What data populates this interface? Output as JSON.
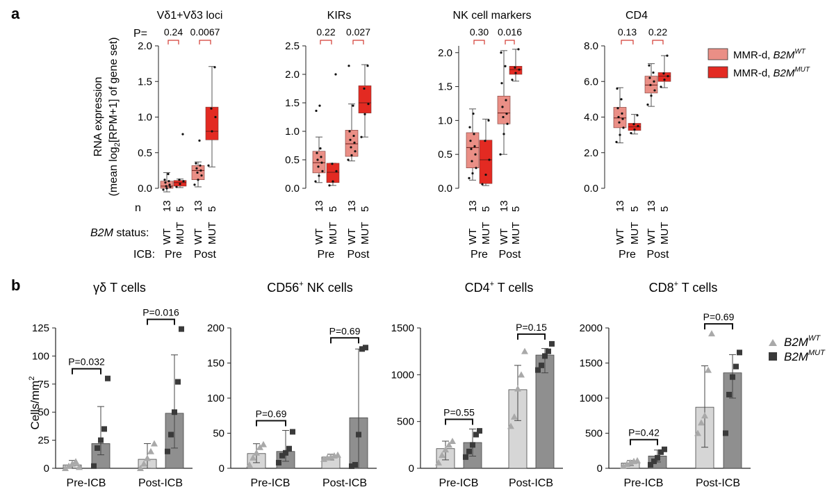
{
  "panel_a": {
    "label": "a",
    "ylabel_line1": "RNA expression",
    "ylabel_line2_prefix": "(mean log",
    "ylabel_line2_sub": "2",
    "ylabel_line2_suffix": "[RPM+1] of gene set)",
    "row_p": "P=",
    "row_n": "n",
    "row_status_italic": "B2M",
    "row_status_rest": " status:",
    "row_icb": "ICB:",
    "groups": [
      "Pre",
      "Post"
    ],
    "status_labels": [
      "WT",
      "MUT",
      "WT",
      "MUT"
    ],
    "n_values": [
      "13",
      "5",
      "13",
      "5"
    ],
    "legend": [
      {
        "main": "MMR-d, ",
        "gene": "B2M",
        "sup": "WT",
        "color": "#ea8f86"
      },
      {
        "main": "MMR-d, ",
        "gene": "B2M",
        "sup": "MUT",
        "color": "#e32a22"
      }
    ]
  },
  "panel_b": {
    "label": "b",
    "ylabel": "Cells/mm",
    "ylabel_sup": "2",
    "categories": [
      "Pre-ICB",
      "Post-ICB"
    ],
    "legend": [
      {
        "gene": "B2M",
        "sup": "WT",
        "color": "#a9a9a9",
        "marker": "triangle"
      },
      {
        "gene": "B2M",
        "sup": "MUT",
        "color": "#3a3a3a",
        "marker": "square"
      }
    ]
  },
  "colors": {
    "wt_box": "#ea8f86",
    "mut_box": "#e32a22",
    "bracket_a": "#d33b33",
    "wt_bar": "#d6d6d6",
    "mut_bar": "#8f8f8f",
    "wt_marker": "#a9a9a9",
    "mut_marker": "#3a3a3a"
  },
  "chart_data": [
    {
      "type": "box",
      "title": "Vδ1+Vδ3 loci",
      "ylim": [
        0,
        2.0
      ],
      "yticks": [
        0,
        0.5,
        1.0,
        1.5,
        2.0
      ],
      "tick_decimals": 1,
      "pvalues": [
        "0.24",
        "0.0067"
      ],
      "boxes": [
        {
          "group": "Pre",
          "status": "WT",
          "q1": 0.0,
          "median": 0.03,
          "q3": 0.1,
          "whisker_low": -0.05,
          "whisker_high": 0.22,
          "points": [
            -0.02,
            0.0,
            0.02,
            0.03,
            0.05,
            0.08,
            0.1,
            0.12,
            0.2
          ]
        },
        {
          "group": "Pre",
          "status": "MUT",
          "q1": 0.03,
          "median": 0.08,
          "q3": 0.11,
          "whisker_low": 0.01,
          "whisker_high": 0.13,
          "points": [
            0.02,
            0.06,
            0.1,
            0.12,
            0.76
          ]
        },
        {
          "group": "Post",
          "status": "WT",
          "q1": 0.12,
          "median": 0.25,
          "q3": 0.32,
          "whisker_low": 0.02,
          "whisker_high": 0.37,
          "points": [
            0.05,
            0.12,
            0.18,
            0.22,
            0.25,
            0.28,
            0.32,
            0.35,
            0.67
          ]
        },
        {
          "group": "Post",
          "status": "MUT",
          "q1": 0.68,
          "median": 0.8,
          "q3": 1.14,
          "whisker_low": 0.3,
          "whisker_high": 1.71,
          "points": [
            0.32,
            0.8,
            1.0,
            1.12,
            1.7
          ]
        }
      ]
    },
    {
      "type": "box",
      "title": "KIRs",
      "ylim": [
        0,
        2.5
      ],
      "yticks": [
        0,
        0.5,
        1.0,
        1.5,
        2.0,
        2.5
      ],
      "tick_decimals": 1,
      "pvalues": [
        "0.22",
        "0.027"
      ],
      "boxes": [
        {
          "group": "Pre",
          "status": "WT",
          "q1": 0.27,
          "median": 0.45,
          "q3": 0.65,
          "whisker_low": 0.1,
          "whisker_high": 0.9,
          "points": [
            0.12,
            0.22,
            0.3,
            0.38,
            0.45,
            0.5,
            0.55,
            0.62,
            0.7,
            1.36,
            1.45
          ]
        },
        {
          "group": "Pre",
          "status": "MUT",
          "q1": 0.1,
          "median": 0.28,
          "q3": 0.44,
          "whisker_low": 0.05,
          "whisker_high": 0.44,
          "points": [
            0.05,
            0.12,
            0.3,
            0.43,
            2.0
          ]
        },
        {
          "group": "Post",
          "status": "WT",
          "q1": 0.56,
          "median": 0.78,
          "q3": 1.02,
          "whisker_low": 0.48,
          "whisker_high": 1.48,
          "points": [
            0.5,
            0.58,
            0.65,
            0.72,
            0.8,
            0.85,
            0.92,
            1.0,
            1.45,
            2.15
          ]
        },
        {
          "group": "Post",
          "status": "MUT",
          "q1": 1.32,
          "median": 1.5,
          "q3": 1.8,
          "whisker_low": 0.9,
          "whisker_high": 2.17,
          "points": [
            0.9,
            1.3,
            1.48,
            1.75,
            2.15
          ]
        }
      ]
    },
    {
      "type": "box",
      "title": "NK cell markers",
      "ylim": [
        0,
        2.1
      ],
      "yticks": [
        0,
        0.5,
        1.0,
        1.5,
        2.0
      ],
      "tick_decimals": 1,
      "pvalues": [
        "0.30",
        "0.016"
      ],
      "boxes": [
        {
          "group": "Pre",
          "status": "WT",
          "q1": 0.3,
          "median": 0.6,
          "q3": 0.82,
          "whisker_low": 0.12,
          "whisker_high": 1.17,
          "points": [
            0.15,
            0.22,
            0.3,
            0.4,
            0.5,
            0.58,
            0.62,
            0.7,
            0.8,
            0.9,
            1.1
          ]
        },
        {
          "group": "Pre",
          "status": "MUT",
          "q1": 0.07,
          "median": 0.42,
          "q3": 0.71,
          "whisker_low": 0.04,
          "whisker_high": 1.02,
          "points": [
            0.06,
            0.2,
            0.42,
            0.7,
            1.0
          ]
        },
        {
          "group": "Post",
          "status": "WT",
          "q1": 0.95,
          "median": 1.11,
          "q3": 1.36,
          "whisker_low": 0.5,
          "whisker_high": 2.03,
          "points": [
            0.5,
            0.8,
            0.95,
            1.05,
            1.1,
            1.2,
            1.3,
            1.55,
            1.8,
            2.0
          ]
        },
        {
          "group": "Post",
          "status": "MUT",
          "q1": 1.68,
          "median": 1.75,
          "q3": 1.8,
          "whisker_low": 1.58,
          "whisker_high": 2.05,
          "points": [
            1.6,
            1.7,
            1.75,
            1.78,
            2.05
          ]
        }
      ]
    },
    {
      "type": "box",
      "title": "CD4",
      "ylim": [
        0,
        8.0
      ],
      "yticks": [
        0,
        2.0,
        4.0,
        6.0,
        8.0
      ],
      "tick_decimals": 1,
      "pvalues": [
        "0.13",
        "0.22"
      ],
      "boxes": [
        {
          "group": "Pre",
          "status": "WT",
          "q1": 3.4,
          "median": 3.95,
          "q3": 4.55,
          "whisker_low": 2.55,
          "whisker_high": 5.65,
          "points": [
            2.6,
            3.0,
            3.4,
            3.7,
            3.9,
            4.0,
            4.2,
            4.5,
            5.0,
            5.6
          ]
        },
        {
          "group": "Pre",
          "status": "MUT",
          "q1": 3.25,
          "median": 3.45,
          "q3": 3.65,
          "whisker_low": 3.05,
          "whisker_high": 4.15,
          "points": [
            3.1,
            3.3,
            3.5,
            3.6,
            4.1
          ]
        },
        {
          "group": "Post",
          "status": "WT",
          "q1": 5.35,
          "median": 5.8,
          "q3": 6.3,
          "whisker_low": 4.6,
          "whisker_high": 7.0,
          "points": [
            4.7,
            5.2,
            5.5,
            5.8,
            6.0,
            6.2,
            6.5,
            6.9
          ]
        },
        {
          "group": "Post",
          "status": "MUT",
          "q1": 6.0,
          "median": 6.3,
          "q3": 6.5,
          "whisker_low": 5.65,
          "whisker_high": 7.45,
          "points": [
            5.7,
            6.1,
            6.3,
            6.45,
            7.45
          ]
        }
      ]
    },
    {
      "type": "bar",
      "title_prefix": "γδ T cells",
      "title_sup": "",
      "title_suffix": "",
      "ylim": [
        0,
        125
      ],
      "yticks": [
        0,
        25,
        50,
        75,
        100,
        125
      ],
      "tick_decimals": 0,
      "pvalues": [
        "P=0.032",
        "P=0.016"
      ],
      "groups": [
        {
          "category": "Pre-ICB",
          "wt": {
            "mean": 3,
            "err_low": 0,
            "err_high": 7,
            "points": [
              0,
              2,
              4,
              6,
              1
            ]
          },
          "mut": {
            "mean": 22,
            "err_low": 12,
            "err_high": 55,
            "points": [
              2,
              18,
              25,
              35,
              80
            ]
          }
        },
        {
          "category": "Post-ICB",
          "wt": {
            "mean": 8,
            "err_low": 0,
            "err_high": 22,
            "points": [
              0,
              4,
              9,
              15,
              22
            ]
          },
          "mut": {
            "mean": 49,
            "err_low": 18,
            "err_high": 101,
            "points": [
              15,
              30,
              50,
              77,
              124
            ]
          }
        }
      ]
    },
    {
      "type": "bar",
      "title_prefix": "CD56",
      "title_sup": "+",
      "title_suffix": " NK cells",
      "ylim": [
        0,
        200
      ],
      "yticks": [
        0,
        50,
        100,
        150,
        200
      ],
      "tick_decimals": 0,
      "pvalues": [
        "P=0.69",
        "P=0.69"
      ],
      "groups": [
        {
          "category": "Pre-ICB",
          "wt": {
            "mean": 21,
            "err_low": 8,
            "err_high": 35,
            "points": [
              5,
              15,
              22,
              30,
              34
            ]
          },
          "mut": {
            "mean": 24,
            "err_low": 10,
            "err_high": 54,
            "points": [
              8,
              18,
              22,
              28,
              52
            ]
          }
        },
        {
          "category": "Post-ICB",
          "wt": {
            "mean": 16,
            "err_low": 12,
            "err_high": 20,
            "points": [
              13,
              15,
              16,
              18,
              19
            ]
          },
          "mut": {
            "mean": 72,
            "err_low": 0,
            "err_high": 170,
            "points": [
              3,
              5,
              48,
              170,
              172
            ]
          }
        }
      ]
    },
    {
      "type": "bar",
      "title_prefix": "CD4",
      "title_sup": "+",
      "title_suffix": " T cells",
      "ylim": [
        0,
        1500
      ],
      "yticks": [
        0,
        500,
        1000,
        1500
      ],
      "tick_decimals": 0,
      "pvalues": [
        "P=0.55",
        "P=0.15"
      ],
      "groups": [
        {
          "category": "Pre-ICB",
          "wt": {
            "mean": 210,
            "err_low": 90,
            "err_high": 290,
            "points": [
              60,
              140,
              200,
              250,
              290
            ]
          },
          "mut": {
            "mean": 275,
            "err_low": 130,
            "err_high": 420,
            "points": [
              120,
              180,
              250,
              360,
              400
            ]
          }
        },
        {
          "category": "Post-ICB",
          "wt": {
            "mean": 840,
            "err_low": 510,
            "err_high": 1100,
            "points": [
              450,
              550,
              850,
              1000,
              1250
            ]
          },
          "mut": {
            "mean": 1210,
            "err_low": 1020,
            "err_high": 1280,
            "points": [
              1050,
              1100,
              1200,
              1250,
              1330
            ]
          }
        }
      ]
    },
    {
      "type": "bar",
      "title_prefix": "CD8",
      "title_sup": "+",
      "title_suffix": " T cells",
      "ylim": [
        0,
        2000
      ],
      "yticks": [
        0,
        500,
        1000,
        1500,
        2000
      ],
      "tick_decimals": 0,
      "pvalues": [
        "P=0.42",
        "P=0.69"
      ],
      "groups": [
        {
          "category": "Pre-ICB",
          "wt": {
            "mean": 75,
            "err_low": 40,
            "err_high": 110,
            "points": [
              30,
              60,
              80,
              100,
              110
            ]
          },
          "mut": {
            "mean": 175,
            "err_low": 90,
            "err_high": 260,
            "points": [
              50,
              100,
              150,
              230,
              270
            ]
          }
        },
        {
          "category": "Post-ICB",
          "wt": {
            "mean": 870,
            "err_low": 300,
            "err_high": 1460,
            "points": [
              500,
              650,
              750,
              1400,
              1920
            ]
          },
          "mut": {
            "mean": 1360,
            "err_low": 1000,
            "err_high": 1620,
            "points": [
              500,
              1050,
              1300,
              1450,
              1650
            ]
          }
        }
      ]
    }
  ]
}
